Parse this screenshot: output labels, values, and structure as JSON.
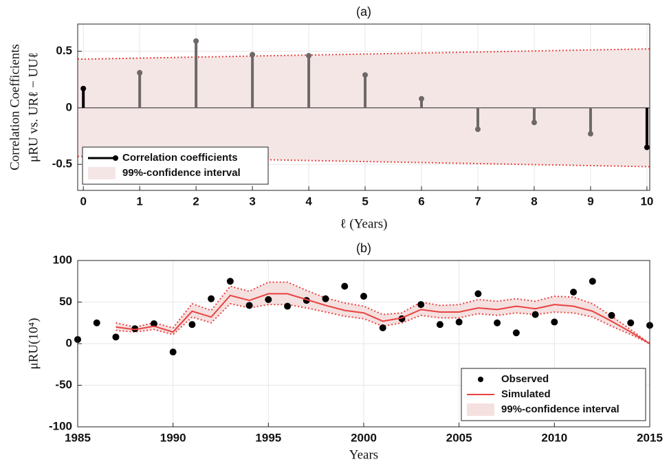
{
  "chart_data": [
    {
      "type": "stem",
      "title": "(a)",
      "xlabel": "ℓ (Years)",
      "ylabel": [
        "Correlation Coefficients",
        "μRU vs. URℓ − UUℓ"
      ],
      "xlim": [
        -0.1,
        10.05
      ],
      "xticks": [
        0,
        1,
        2,
        3,
        4,
        5,
        6,
        7,
        8,
        9,
        10
      ],
      "ylim": [
        -0.73,
        0.74
      ],
      "yticks": [
        -0.5,
        0,
        0.5
      ],
      "grid": true,
      "legend": "lower left",
      "series": [
        {
          "name": "Correlation coefficients",
          "color": "#000000",
          "colors": [
            "#000000",
            "#6e6868",
            "#6e6868",
            "#6e6868",
            "#6e6868",
            "#6e6868",
            "#6e6868",
            "#6e6868",
            "#6e6868",
            "#6e6868",
            "#000000"
          ],
          "x": [
            0,
            1,
            2,
            3,
            4,
            5,
            6,
            7,
            8,
            9,
            10
          ],
          "values": [
            0.17,
            0.31,
            0.59,
            0.47,
            0.46,
            0.29,
            0.08,
            -0.19,
            -0.13,
            -0.23,
            -0.35
          ]
        }
      ],
      "band": {
        "name": "99%-confidence interval",
        "color": "#f5e6e6",
        "line_color": "#e8423f",
        "x": [
          0,
          10
        ],
        "upper": [
          0.43,
          0.52
        ],
        "lower": [
          -0.43,
          -0.52
        ]
      }
    },
    {
      "type": "line",
      "title": "(b)",
      "xlabel": "Years",
      "ylabel": [
        "μRU(10⁴)"
      ],
      "xlim": [
        1985,
        2015
      ],
      "xticks": [
        1985,
        1990,
        1995,
        2000,
        2005,
        2010,
        2015
      ],
      "ylim": [
        -100,
        100
      ],
      "yticks": [
        -100,
        -50,
        0,
        50,
        100
      ],
      "grid": true,
      "legend": "lower right",
      "series": [
        {
          "name": "Observed",
          "mode": "markers",
          "color": "#000000",
          "x": [
            1985,
            1986,
            1987,
            1988,
            1989,
            1990,
            1991,
            1992,
            1993,
            1994,
            1995,
            1996,
            1997,
            1998,
            1999,
            2000,
            2001,
            2002,
            2003,
            2004,
            2005,
            2006,
            2007,
            2008,
            2009,
            2010,
            2011,
            2012,
            2013,
            2014,
            2015
          ],
          "values": [
            5,
            25,
            8,
            18,
            24,
            -10,
            23,
            54,
            75,
            46,
            53,
            45,
            52,
            54,
            69,
            57,
            19,
            30,
            47,
            23,
            26,
            60,
            25,
            13,
            35,
            26,
            62,
            75,
            34,
            25,
            22
          ]
        },
        {
          "name": "Simulated",
          "mode": "line",
          "color": "#e8423f",
          "x": [
            1987,
            1988,
            1989,
            1990,
            1991,
            1992,
            1993,
            1994,
            1995,
            1996,
            1997,
            1998,
            1999,
            2000,
            2001,
            2002,
            2003,
            2004,
            2005,
            2006,
            2007,
            2008,
            2009,
            2010,
            2011,
            2012,
            2013,
            2014,
            2015
          ],
          "values": [
            20,
            17,
            21,
            14,
            39,
            32,
            58,
            52,
            60,
            60,
            53,
            46,
            40,
            37,
            27,
            31,
            41,
            38,
            38,
            43,
            41,
            45,
            42,
            47,
            45,
            39,
            27,
            14,
            0
          ]
        }
      ],
      "band": {
        "name": "99%-confidence interval",
        "color": "#f5e0e0",
        "line_color": "#e8423f",
        "x": [
          1987,
          1988,
          1989,
          1990,
          1991,
          1992,
          1993,
          1994,
          1995,
          1996,
          1997,
          1998,
          1999,
          2000,
          2001,
          2002,
          2003,
          2004,
          2005,
          2006,
          2007,
          2008,
          2009,
          2010,
          2011,
          2012,
          2013,
          2014,
          2015
        ],
        "upper": [
          25,
          20,
          25,
          19,
          48,
          40,
          69,
          63,
          74,
          74,
          64,
          55,
          49,
          45,
          35,
          37,
          50,
          46,
          47,
          53,
          51,
          54,
          51,
          57,
          56,
          48,
          33,
          17,
          0
        ],
        "lower": [
          16,
          14,
          17,
          11,
          32,
          25,
          48,
          43,
          47,
          47,
          43,
          38,
          33,
          30,
          21,
          25,
          34,
          31,
          31,
          36,
          34,
          37,
          35,
          38,
          37,
          32,
          21,
          11,
          0
        ]
      }
    }
  ]
}
